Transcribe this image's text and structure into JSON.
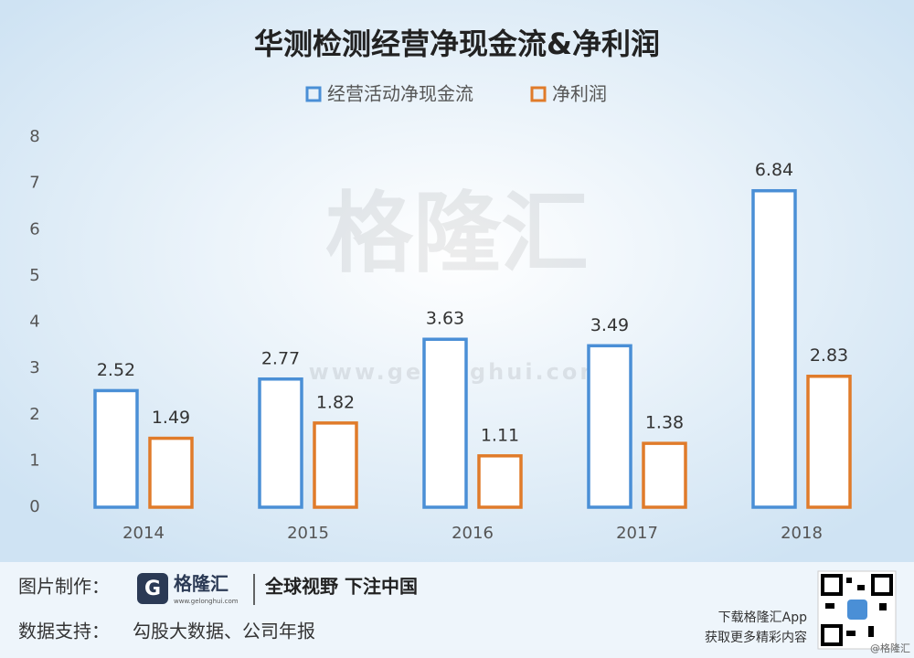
{
  "chart_data": {
    "type": "bar",
    "title": "华测检测经营净现金流&净利润",
    "categories": [
      "2014",
      "2015",
      "2016",
      "2017",
      "2018"
    ],
    "series": [
      {
        "name": "经营活动净现金流",
        "color": "#4a8fd6",
        "values": [
          2.52,
          2.77,
          3.63,
          3.49,
          6.84
        ]
      },
      {
        "name": "净利润",
        "color": "#e07b2a",
        "values": [
          1.49,
          1.82,
          1.11,
          1.38,
          2.83
        ]
      }
    ],
    "ylim": [
      0,
      8
    ],
    "yticks": [
      0,
      1,
      2,
      3,
      4,
      5,
      6,
      7,
      8
    ],
    "grid": false,
    "legend": "top"
  },
  "watermark": {
    "name": "格隆汇",
    "url": "www.gelonghui.com"
  },
  "footer": {
    "maker_label": "图片制作：",
    "logo_name": "格隆汇",
    "logo_url": "www.gelonghui.com",
    "slogan": "全球视野 下注中国",
    "source_label": "数据支持：",
    "source": "勾股大数据、公司年报",
    "app_line1": "下载格隆汇App",
    "app_line2": "获取更多精彩内容",
    "handle": "@格隆汇"
  }
}
